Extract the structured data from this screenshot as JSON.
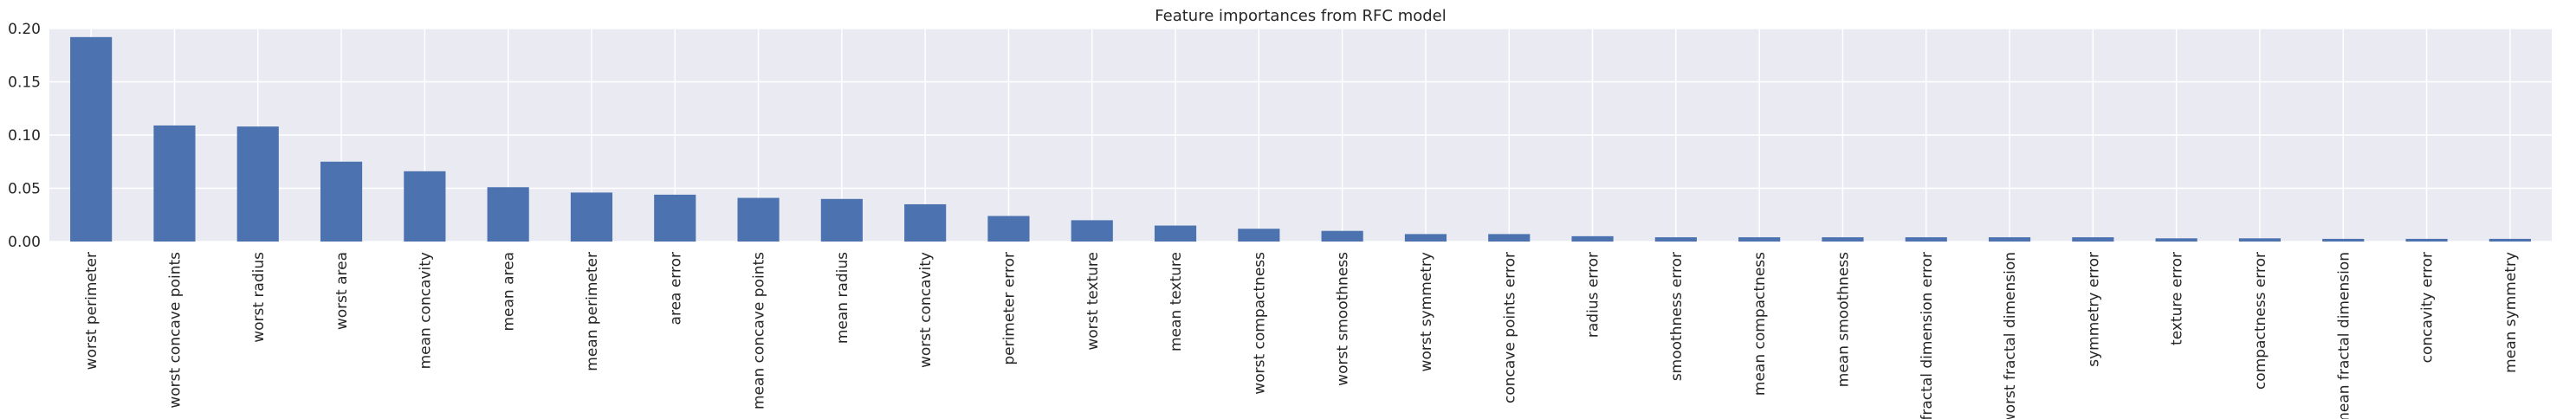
{
  "chart_data": {
    "type": "bar",
    "title": "Feature importances from RFC model",
    "xlabel": "",
    "ylabel": "",
    "ylim": [
      0,
      0.2
    ],
    "yticks": [
      "0.00",
      "0.05",
      "0.10",
      "0.15",
      "0.20"
    ],
    "grid": true,
    "legend": "none",
    "categories": [
      "worst perimeter",
      "worst concave points",
      "worst radius",
      "worst area",
      "mean concavity",
      "mean area",
      "mean perimeter",
      "area error",
      "mean concave points",
      "mean radius",
      "worst concavity",
      "perimeter error",
      "worst texture",
      "mean texture",
      "worst compactness",
      "worst smoothness",
      "worst symmetry",
      "concave points error",
      "radius error",
      "smoothness error",
      "mean compactness",
      "mean smoothness",
      "fractal dimension error",
      "worst fractal dimension",
      "symmetry error",
      "texture error",
      "compactness error",
      "mean fractal dimension",
      "concavity error",
      "mean symmetry"
    ],
    "values": [
      0.192,
      0.109,
      0.108,
      0.075,
      0.066,
      0.051,
      0.046,
      0.044,
      0.041,
      0.04,
      0.035,
      0.024,
      0.02,
      0.015,
      0.012,
      0.01,
      0.007,
      0.007,
      0.005,
      0.004,
      0.004,
      0.004,
      0.004,
      0.004,
      0.004,
      0.003,
      0.003,
      0.0025,
      0.0025,
      0.0025
    ],
    "colors": {
      "bar": "#4c72b0",
      "background": "#eaeaf2",
      "grid": "#ffffff"
    }
  }
}
